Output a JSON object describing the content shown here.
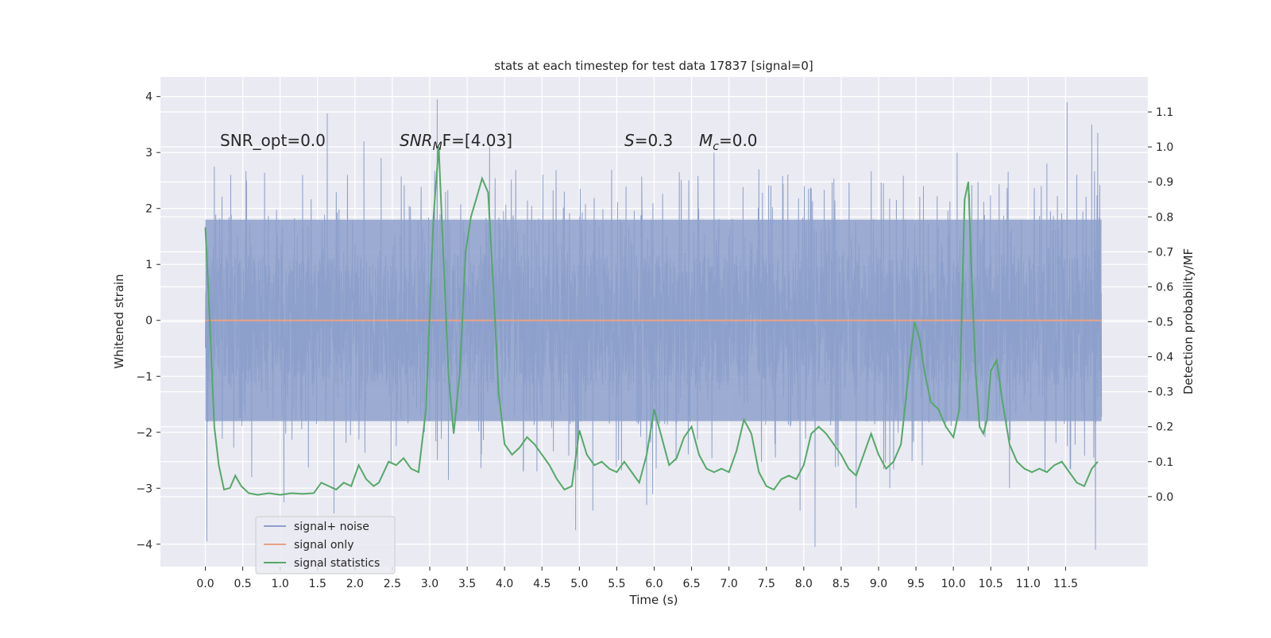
{
  "chart_data": {
    "type": "line",
    "title": "stats at each timestep for test data 17837 [signal=0]",
    "xlabel": "Time (s)",
    "ylabel": "Whitened strain",
    "y2label": "Detection probability/MF",
    "xlim": [
      -0.6,
      12.6
    ],
    "ylim": [
      -4.4,
      4.35
    ],
    "y2lim": [
      -0.2,
      1.2
    ],
    "x_ticks": [
      0.0,
      0.5,
      1.0,
      1.5,
      2.0,
      2.5,
      3.0,
      3.5,
      4.0,
      4.5,
      5.0,
      5.5,
      6.0,
      6.5,
      7.0,
      7.5,
      8.0,
      8.5,
      9.0,
      9.5,
      10.0,
      10.5,
      11.0,
      11.5
    ],
    "x_tick_labels": [
      "0.0",
      "0.5",
      "1.0",
      "1.5",
      "2.0",
      "2.5",
      "3.0",
      "3.5",
      "4.0",
      "4.5",
      "5.0",
      "5.5",
      "6.0",
      "6.5",
      "7.0",
      "7.5",
      "8.0",
      "8.5",
      "9.0",
      "9.5",
      "10.0",
      "10.5",
      "11.0",
      "11.5"
    ],
    "y_ticks": [
      4,
      3,
      2,
      1,
      0,
      -1,
      -2,
      -3,
      -4
    ],
    "y_tick_labels": [
      "4",
      "3",
      "2",
      "1",
      "0",
      "−1",
      "−2",
      "−3",
      "−4"
    ],
    "y2_ticks": [
      1.1,
      1.0,
      0.9,
      0.8,
      0.7,
      0.6,
      0.5,
      0.4,
      0.3,
      0.2,
      0.1,
      0.0
    ],
    "y2_tick_labels": [
      "1.1",
      "1.0",
      "0.9",
      "0.8",
      "0.7",
      "0.6",
      "0.5",
      "0.4",
      "0.3",
      "0.2",
      "0.1",
      "0.0"
    ],
    "noise": {
      "duration": 12.0,
      "band_low": -1.8,
      "band_high": 1.8,
      "spikes": [
        {
          "t": 0.02,
          "v": -3.95
        },
        {
          "t": 0.12,
          "v": 2.75
        },
        {
          "t": 0.55,
          "v": 2.5
        },
        {
          "t": 0.62,
          "v": -2.8
        },
        {
          "t": 1.05,
          "v": -3.25
        },
        {
          "t": 1.3,
          "v": 2.6
        },
        {
          "t": 1.63,
          "v": 3.7
        },
        {
          "t": 1.72,
          "v": -3.45
        },
        {
          "t": 2.12,
          "v": 3.2
        },
        {
          "t": 2.35,
          "v": 2.9
        },
        {
          "t": 3.1,
          "v": 3.95
        },
        {
          "t": 3.25,
          "v": -2.85
        },
        {
          "t": 3.8,
          "v": 3.1
        },
        {
          "t": 4.25,
          "v": -2.7
        },
        {
          "t": 4.95,
          "v": -3.75
        },
        {
          "t": 5.18,
          "v": -3.4
        },
        {
          "t": 5.9,
          "v": -3.3
        },
        {
          "t": 5.98,
          "v": -3.1
        },
        {
          "t": 6.8,
          "v": 3.0
        },
        {
          "t": 7.4,
          "v": 2.7
        },
        {
          "t": 7.95,
          "v": -3.4
        },
        {
          "t": 8.15,
          "v": -4.05
        },
        {
          "t": 8.7,
          "v": -3.35
        },
        {
          "t": 9.15,
          "v": -3.0
        },
        {
          "t": 9.6,
          "v": 2.4
        },
        {
          "t": 10.05,
          "v": 3.0
        },
        {
          "t": 10.75,
          "v": -3.0
        },
        {
          "t": 11.25,
          "v": 2.8
        },
        {
          "t": 11.52,
          "v": 3.9
        },
        {
          "t": 11.65,
          "v": 2.6
        },
        {
          "t": 11.85,
          "v": 3.5
        },
        {
          "t": 11.9,
          "v": -4.1
        },
        {
          "t": 11.93,
          "v": 3.35
        }
      ]
    },
    "series": [
      {
        "name": "signal+ noise",
        "color": "#8da0cb",
        "kind": "noise"
      },
      {
        "name": "signal only",
        "color": "#e8a287",
        "kind": "flat",
        "value": 0.0
      },
      {
        "name": "signal statistics",
        "color": "#55a868",
        "kind": "line",
        "axis": "right",
        "x": [
          0.0,
          0.06,
          0.12,
          0.18,
          0.25,
          0.33,
          0.4,
          0.48,
          0.58,
          0.7,
          0.85,
          1.0,
          1.15,
          1.3,
          1.45,
          1.55,
          1.65,
          1.75,
          1.85,
          1.95,
          2.05,
          2.15,
          2.25,
          2.32,
          2.45,
          2.55,
          2.65,
          2.75,
          2.85,
          2.95,
          3.05,
          3.12,
          3.18,
          3.25,
          3.32,
          3.4,
          3.48,
          3.55,
          3.62,
          3.7,
          3.78,
          3.85,
          3.92,
          4.0,
          4.1,
          4.2,
          4.3,
          4.4,
          4.5,
          4.6,
          4.7,
          4.8,
          4.9,
          5.0,
          5.1,
          5.2,
          5.3,
          5.4,
          5.5,
          5.6,
          5.7,
          5.8,
          5.9,
          6.0,
          6.1,
          6.2,
          6.3,
          6.4,
          6.5,
          6.6,
          6.7,
          6.8,
          6.9,
          7.0,
          7.1,
          7.2,
          7.3,
          7.4,
          7.5,
          7.6,
          7.7,
          7.8,
          7.9,
          8.0,
          8.1,
          8.2,
          8.3,
          8.4,
          8.5,
          8.6,
          8.7,
          8.8,
          8.9,
          9.0,
          9.1,
          9.2,
          9.3,
          9.4,
          9.48,
          9.55,
          9.62,
          9.7,
          9.8,
          9.9,
          10.0,
          10.08,
          10.15,
          10.2,
          10.25,
          10.3,
          10.35,
          10.4,
          10.45,
          10.5,
          10.58,
          10.65,
          10.75,
          10.85,
          10.95,
          11.05,
          11.15,
          11.25,
          11.35,
          11.45,
          11.55,
          11.65,
          11.75,
          11.85,
          11.93
        ],
        "values": [
          0.77,
          0.5,
          0.2,
          0.09,
          0.02,
          0.025,
          0.06,
          0.03,
          0.01,
          0.005,
          0.01,
          0.005,
          0.01,
          0.008,
          0.01,
          0.04,
          0.03,
          0.02,
          0.04,
          0.03,
          0.09,
          0.05,
          0.03,
          0.04,
          0.1,
          0.09,
          0.11,
          0.08,
          0.07,
          0.25,
          0.8,
          1.0,
          0.7,
          0.35,
          0.18,
          0.35,
          0.7,
          0.8,
          0.85,
          0.91,
          0.87,
          0.6,
          0.3,
          0.15,
          0.12,
          0.14,
          0.17,
          0.15,
          0.12,
          0.09,
          0.05,
          0.02,
          0.03,
          0.19,
          0.12,
          0.09,
          0.1,
          0.08,
          0.07,
          0.1,
          0.07,
          0.04,
          0.12,
          0.25,
          0.17,
          0.09,
          0.11,
          0.17,
          0.2,
          0.12,
          0.08,
          0.07,
          0.08,
          0.07,
          0.13,
          0.22,
          0.18,
          0.07,
          0.03,
          0.02,
          0.05,
          0.06,
          0.05,
          0.09,
          0.18,
          0.2,
          0.18,
          0.15,
          0.12,
          0.08,
          0.06,
          0.12,
          0.18,
          0.12,
          0.08,
          0.1,
          0.15,
          0.35,
          0.5,
          0.45,
          0.35,
          0.27,
          0.25,
          0.2,
          0.17,
          0.25,
          0.85,
          0.9,
          0.6,
          0.35,
          0.2,
          0.18,
          0.22,
          0.36,
          0.39,
          0.28,
          0.15,
          0.1,
          0.08,
          0.07,
          0.08,
          0.07,
          0.09,
          0.1,
          0.07,
          0.04,
          0.03,
          0.08,
          0.1
        ]
      }
    ],
    "annotations": {
      "snr_opt": "SNR_opt=0.0",
      "snr_mf_base": "SNR",
      "snr_mf_sub": "M",
      "snr_mf_rest": "F=[4.03]",
      "s_label": "S",
      "s_rest": "=0.3",
      "mc_label": "M",
      "mc_sub": "c",
      "mc_rest": "=0.0"
    },
    "legend": {
      "placement": "lower-left",
      "entries": [
        "signal+ noise",
        "signal only",
        "signal statistics"
      ]
    }
  }
}
